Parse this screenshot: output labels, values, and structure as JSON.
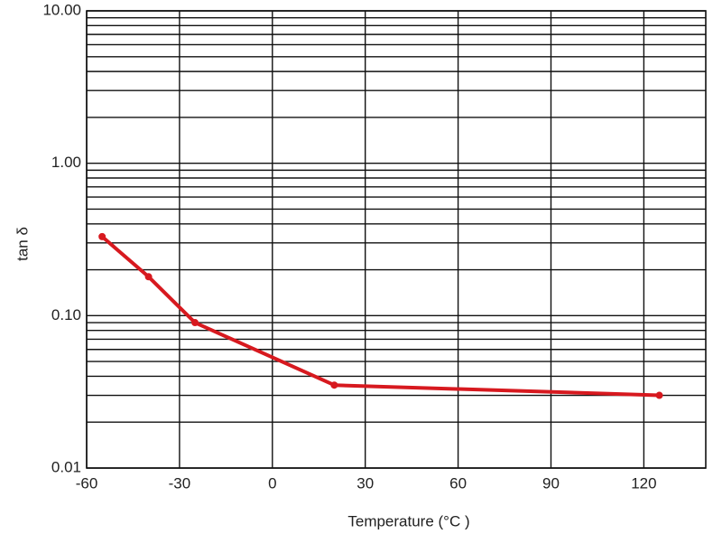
{
  "chart_data": {
    "type": "line",
    "xlabel": "Temperature (°C )",
    "ylabel": "tan δ",
    "log_y": true,
    "grid": true,
    "xlim": [
      -60,
      140
    ],
    "xticks": [
      -60,
      -30,
      0,
      30,
      60,
      90,
      120
    ],
    "ylim": [
      0.01,
      10
    ],
    "yticks": [
      {
        "value": 0.01,
        "label": "0.01"
      },
      {
        "value": 0.1,
        "label": "0.10"
      },
      {
        "value": 1,
        "label": "1.00"
      },
      {
        "value": 10,
        "label": "10.00"
      }
    ],
    "yminorticks": [
      0.02,
      0.03,
      0.04,
      0.05,
      0.06,
      0.07,
      0.08,
      0.09,
      0.2,
      0.3,
      0.4,
      0.5,
      0.6,
      0.7,
      0.8,
      0.9,
      2,
      3,
      4,
      5,
      6,
      7,
      8,
      9
    ],
    "series": [
      {
        "color": "#d7191f",
        "x": [
          -55,
          -40,
          -25,
          20,
          125
        ],
        "values": [
          0.33,
          0.18,
          0.09,
          0.035,
          0.03
        ]
      }
    ]
  }
}
